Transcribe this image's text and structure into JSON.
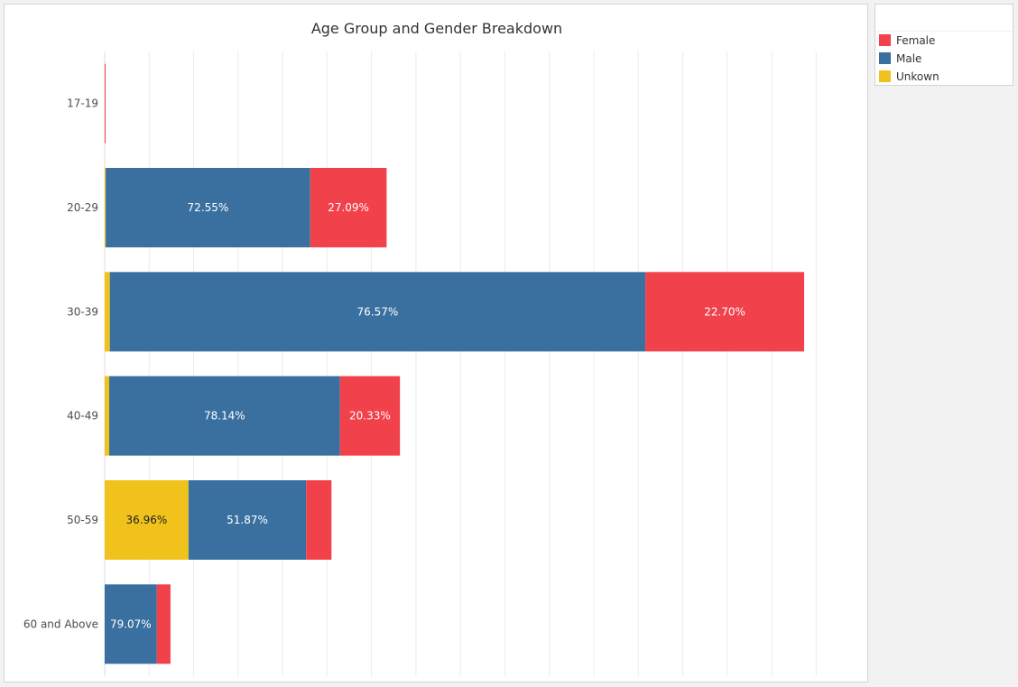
{
  "chart_data": {
    "type": "bar",
    "orientation": "horizontal",
    "stacked": true,
    "title": "Age Group and Gender Breakdown",
    "xlabel": "",
    "ylabel": "",
    "categories": [
      "17-19",
      "20-29",
      "30-39",
      "40-49",
      "50-59",
      "60 and Above"
    ],
    "series": [
      {
        "name": "Unkown",
        "color": "#f1c21b",
        "values": [
          0,
          0.36,
          0.73,
          1.53,
          36.96,
          0
        ]
      },
      {
        "name": "Male",
        "color": "#39709f",
        "values": [
          0,
          72.55,
          76.57,
          78.14,
          51.87,
          79.07
        ]
      },
      {
        "name": "Female",
        "color": "#f1414b",
        "values": [
          100,
          27.09,
          22.7,
          20.33,
          11.17,
          20.93
        ]
      }
    ],
    "segment_labels": [
      [
        "",
        "",
        ""
      ],
      [
        "",
        "72.55%",
        "27.09%"
      ],
      [
        "",
        "76.57%",
        "22.70%"
      ],
      [
        "",
        "78.14%",
        "20.33%"
      ],
      [
        "36.96%",
        "51.87%",
        ""
      ],
      [
        "",
        "79.07%",
        ""
      ]
    ],
    "row_totals": [
      0.15,
      63.4,
      157.3,
      66.4,
      51.0,
      14.8
    ],
    "xlim": [
      0,
      165
    ],
    "grid": true,
    "legend_position": "right",
    "legend_order": [
      "Female",
      "Male",
      "Unkown"
    ]
  }
}
